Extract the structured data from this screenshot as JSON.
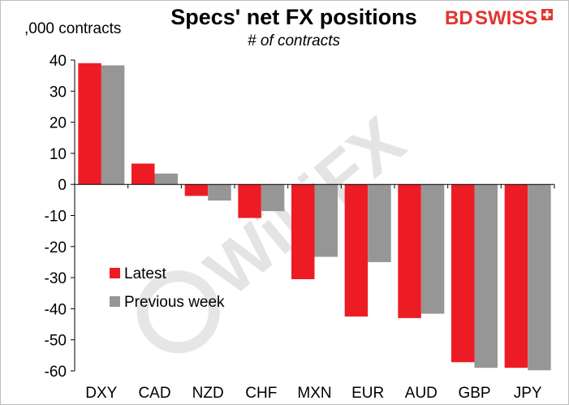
{
  "chart_data": {
    "type": "bar",
    "title": "Specs' net FX positions",
    "subtitle": "# of contracts",
    "ylabel": ",000 contracts",
    "categories": [
      "DXY",
      "CAD",
      "NZD",
      "CHF",
      "MXN",
      "EUR",
      "AUD",
      "GBP",
      "JPY"
    ],
    "series": [
      {
        "name": "Latest",
        "color": "#ed1c24",
        "values": [
          39.0,
          6.7,
          -3.7,
          -10.8,
          -30.5,
          -42.5,
          -43.0,
          -57.2,
          -59.0
        ]
      },
      {
        "name": "Previous week",
        "color": "#969696",
        "values": [
          38.3,
          3.5,
          -5.2,
          -8.6,
          -23.3,
          -25.0,
          -41.6,
          -59.0,
          -59.8
        ]
      }
    ],
    "ylim": [
      -60,
      40
    ],
    "yticks": [
      "40",
      "30",
      "20",
      "10",
      "0",
      "-10",
      "-20",
      "-30",
      "-40",
      "-50",
      "-60"
    ],
    "grid": false,
    "legend_position": "lower-left"
  },
  "branding": {
    "logo_part1": "BD",
    "logo_part2": "SWISS",
    "logo_color": "#e3342f",
    "watermark": "WikiFX"
  }
}
